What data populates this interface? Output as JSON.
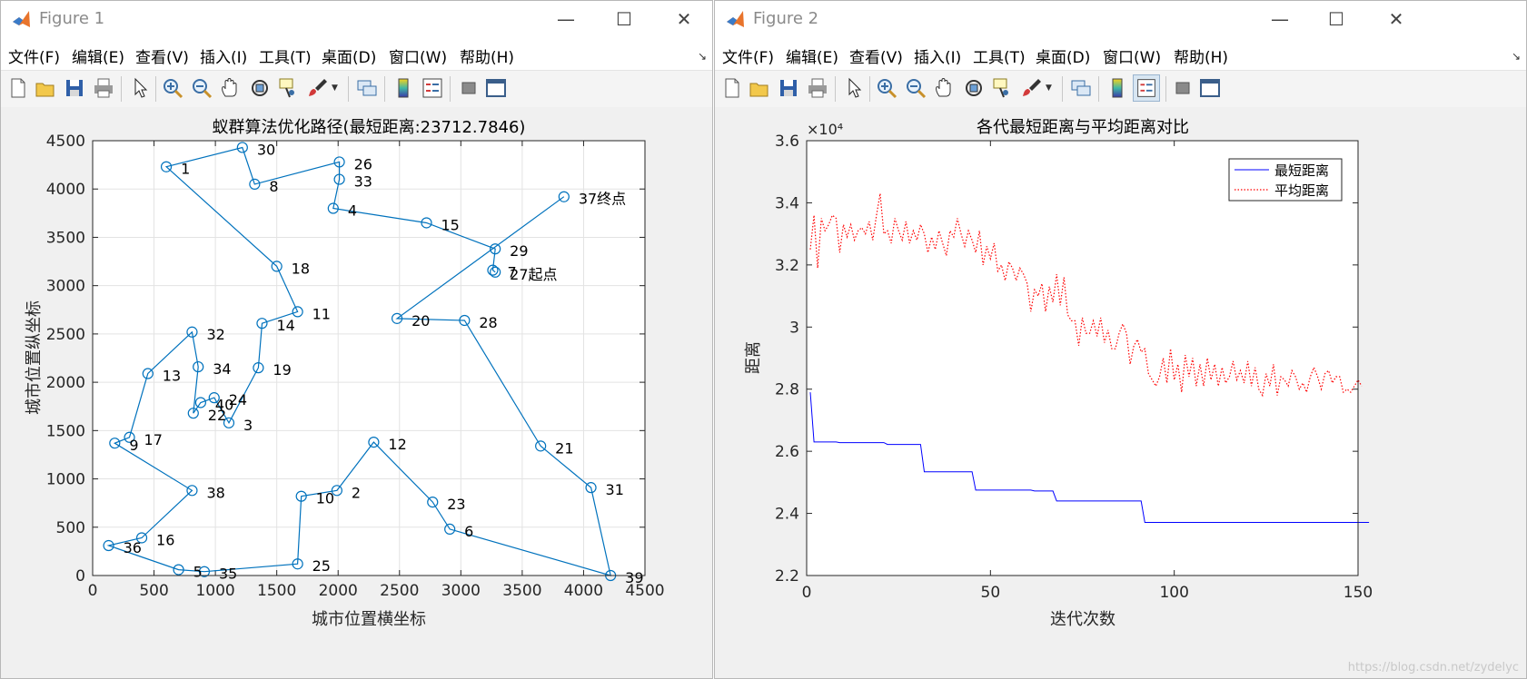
{
  "windows": [
    {
      "title": "Figure 1"
    },
    {
      "title": "Figure 2"
    }
  ],
  "menu": [
    "文件(F)",
    "编辑(E)",
    "查看(V)",
    "插入(I)",
    "工具(T)",
    "桌面(D)",
    "窗口(W)",
    "帮助(H)"
  ],
  "window_controls": {
    "minimize": "—",
    "maximize": "☐",
    "close": "✕"
  },
  "toolbar_icons": [
    "new-file-icon",
    "open-folder-icon",
    "save-icon",
    "print-icon",
    "pointer-icon",
    "zoom-in-icon",
    "zoom-out-icon",
    "pan-hand-icon",
    "rotate-3d-icon",
    "data-cursor-icon",
    "brush-icon",
    "link-plot-icon",
    "colorbar-icon",
    "legend-icon",
    "hide-plot-tools-icon",
    "show-plot-tools-icon"
  ],
  "watermark": "https://blog.csdn.net/zydelyc",
  "colors": {
    "route": "#0072BD",
    "shortest": "#0000FF",
    "average": "#FF0000"
  },
  "chart_data": [
    {
      "type": "line",
      "title": "蚁群算法优化路径(最短距离:23712.7846)",
      "xlabel": "城市位置横坐标",
      "ylabel": "城市位置纵坐标",
      "xlim": [
        0,
        4500
      ],
      "ylim": [
        0,
        4500
      ],
      "xticks": [
        0,
        500,
        1000,
        1500,
        2000,
        2500,
        3000,
        3500,
        4000,
        4500
      ],
      "yticks": [
        0,
        500,
        1000,
        1500,
        2000,
        2500,
        3000,
        3500,
        4000,
        4500
      ],
      "grid": true,
      "marker": "circle",
      "points": [
        {
          "label": "1",
          "x": 600,
          "y": 4230
        },
        {
          "label": "2",
          "x": 1990,
          "y": 880
        },
        {
          "label": "3",
          "x": 1110,
          "y": 1580
        },
        {
          "label": "4",
          "x": 1960,
          "y": 3800
        },
        {
          "label": "5",
          "x": 700,
          "y": 60
        },
        {
          "label": "6",
          "x": 2910,
          "y": 480
        },
        {
          "label": "7",
          "x": 3260,
          "y": 3160
        },
        {
          "label": "8",
          "x": 1320,
          "y": 4050
        },
        {
          "label": "9",
          "x": 180,
          "y": 1370
        },
        {
          "label": "10",
          "x": 1700,
          "y": 820
        },
        {
          "label": "11",
          "x": 1670,
          "y": 2730
        },
        {
          "label": "12",
          "x": 2290,
          "y": 1380
        },
        {
          "label": "13",
          "x": 450,
          "y": 2090
        },
        {
          "label": "14",
          "x": 1380,
          "y": 2610
        },
        {
          "label": "15",
          "x": 2720,
          "y": 3650
        },
        {
          "label": "16",
          "x": 400,
          "y": 390
        },
        {
          "label": "17",
          "x": 300,
          "y": 1430
        },
        {
          "label": "18",
          "x": 1500,
          "y": 3200
        },
        {
          "label": "19",
          "x": 1350,
          "y": 2150
        },
        {
          "label": "20",
          "x": 2480,
          "y": 2660
        },
        {
          "label": "21",
          "x": 3650,
          "y": 1340
        },
        {
          "label": "22",
          "x": 820,
          "y": 1680
        },
        {
          "label": "23",
          "x": 2770,
          "y": 760
        },
        {
          "label": "24",
          "x": 990,
          "y": 1840
        },
        {
          "label": "25",
          "x": 1670,
          "y": 120
        },
        {
          "label": "26",
          "x": 2010,
          "y": 4280
        },
        {
          "label": "27起点",
          "x": 3280,
          "y": 3140
        },
        {
          "label": "28",
          "x": 3030,
          "y": 2640
        },
        {
          "label": "29",
          "x": 3280,
          "y": 3380
        },
        {
          "label": "30",
          "x": 1220,
          "y": 4430
        },
        {
          "label": "31",
          "x": 4060,
          "y": 910
        },
        {
          "label": "32",
          "x": 810,
          "y": 2520
        },
        {
          "label": "33",
          "x": 2010,
          "y": 4100
        },
        {
          "label": "34",
          "x": 860,
          "y": 2160
        },
        {
          "label": "35",
          "x": 910,
          "y": 40
        },
        {
          "label": "36",
          "x": 130,
          "y": 310
        },
        {
          "label": "37终点",
          "x": 3840,
          "y": 3920
        },
        {
          "label": "38",
          "x": 810,
          "y": 880
        },
        {
          "label": "39",
          "x": 4220,
          "y": 0
        },
        {
          "label": "40",
          "x": 880,
          "y": 1790
        }
      ],
      "route_order": [
        "27起点",
        "7",
        "29",
        "15",
        "4",
        "33",
        "26",
        "8",
        "30",
        "1",
        "18",
        "11",
        "14",
        "19",
        "3",
        "24",
        "40",
        "22",
        "34",
        "32",
        "13",
        "17",
        "9",
        "38",
        "16",
        "36",
        "5",
        "35",
        "25",
        "10",
        "2",
        "12",
        "23",
        "6",
        "39",
        "31",
        "21",
        "28",
        "20",
        "37终点"
      ]
    },
    {
      "type": "line",
      "title": "各代最短距离与平均距离对比",
      "xlabel": "迭代次数",
      "ylabel": "距离",
      "exponent_label": "×10⁴",
      "xlim": [
        0,
        150
      ],
      "ylim": [
        2.2,
        3.6
      ],
      "xticks": [
        0,
        50,
        100,
        150
      ],
      "yticks": [
        2.2,
        2.4,
        2.6,
        2.8,
        3,
        3.2,
        3.4,
        3.6
      ],
      "ytick_labels": [
        "2.2",
        "2.4",
        "2.6",
        "2.8",
        "3",
        "3.2",
        "3.4",
        "3.6"
      ],
      "legend": "top-right",
      "grid": false,
      "series": [
        {
          "name": "最短距离",
          "style": "solid",
          "color": "#0000FF",
          "values": [
            2.79,
            2.63,
            2.63,
            2.63,
            2.63,
            2.63,
            2.63,
            2.63,
            2.628,
            2.628,
            2.628,
            2.628,
            2.628,
            2.628,
            2.628,
            2.628,
            2.628,
            2.628,
            2.628,
            2.628,
            2.628,
            2.622,
            2.622,
            2.622,
            2.622,
            2.622,
            2.622,
            2.622,
            2.622,
            2.622,
            2.622,
            2.534,
            2.534,
            2.534,
            2.534,
            2.534,
            2.534,
            2.534,
            2.534,
            2.534,
            2.534,
            2.534,
            2.534,
            2.534,
            2.534,
            2.475,
            2.475,
            2.475,
            2.475,
            2.475,
            2.475,
            2.475,
            2.475,
            2.475,
            2.475,
            2.475,
            2.475,
            2.475,
            2.475,
            2.475,
            2.475,
            2.472,
            2.472,
            2.472,
            2.472,
            2.472,
            2.472,
            2.44,
            2.44,
            2.44,
            2.44,
            2.44,
            2.44,
            2.44,
            2.44,
            2.44,
            2.44,
            2.44,
            2.44,
            2.44,
            2.44,
            2.44,
            2.44,
            2.44,
            2.44,
            2.44,
            2.44,
            2.44,
            2.44,
            2.44,
            2.44,
            2.371,
            2.371,
            2.371,
            2.371,
            2.371,
            2.371,
            2.371,
            2.371,
            2.371,
            2.371,
            2.371,
            2.371,
            2.371,
            2.371,
            2.371,
            2.371,
            2.371,
            2.371,
            2.371,
            2.371,
            2.371,
            2.371,
            2.371,
            2.371,
            2.371,
            2.371,
            2.371,
            2.371,
            2.371,
            2.371,
            2.371,
            2.371,
            2.371,
            2.371,
            2.371,
            2.371,
            2.371,
            2.371,
            2.371,
            2.371,
            2.371,
            2.371,
            2.371,
            2.371,
            2.371,
            2.371,
            2.371,
            2.371,
            2.371,
            2.371,
            2.371,
            2.371,
            2.371,
            2.371,
            2.371,
            2.371,
            2.371,
            2.371,
            2.371,
            2.371,
            2.371,
            2.371
          ]
        },
        {
          "name": "平均距离",
          "style": "dotted",
          "color": "#FF0000",
          "values": [
            3.25,
            3.36,
            3.19,
            3.35,
            3.31,
            3.33,
            3.36,
            3.35,
            3.24,
            3.33,
            3.29,
            3.33,
            3.28,
            3.31,
            3.32,
            3.3,
            3.34,
            3.28,
            3.36,
            3.43,
            3.3,
            3.31,
            3.27,
            3.35,
            3.31,
            3.28,
            3.34,
            3.27,
            3.31,
            3.28,
            3.33,
            3.3,
            3.24,
            3.29,
            3.25,
            3.31,
            3.27,
            3.23,
            3.31,
            3.29,
            3.35,
            3.3,
            3.26,
            3.31,
            3.28,
            3.24,
            3.31,
            3.2,
            3.26,
            3.22,
            3.27,
            3.18,
            3.2,
            3.15,
            3.21,
            3.19,
            3.15,
            3.19,
            3.17,
            3.14,
            3.05,
            3.12,
            3.1,
            3.14,
            3.05,
            3.13,
            3.08,
            3.17,
            3.07,
            3.16,
            3.04,
            3.02,
            3.02,
            2.94,
            3.03,
            2.98,
            2.98,
            3.02,
            2.97,
            3.03,
            2.95,
            2.99,
            2.93,
            2.93,
            2.98,
            3.01,
            2.98,
            2.88,
            2.94,
            2.96,
            2.92,
            2.93,
            2.85,
            2.83,
            2.81,
            2.84,
            2.9,
            2.82,
            2.93,
            2.83,
            2.88,
            2.79,
            2.91,
            2.84,
            2.9,
            2.81,
            2.88,
            2.81,
            2.9,
            2.83,
            2.88,
            2.81,
            2.87,
            2.82,
            2.84,
            2.89,
            2.83,
            2.86,
            2.82,
            2.89,
            2.81,
            2.87,
            2.8,
            2.78,
            2.85,
            2.81,
            2.88,
            2.78,
            2.84,
            2.83,
            2.81,
            2.86,
            2.84,
            2.8,
            2.82,
            2.79,
            2.84,
            2.87,
            2.84,
            2.8,
            2.85,
            2.86,
            2.82,
            2.84,
            2.84,
            2.79,
            2.8,
            2.79,
            2.81,
            2.83,
            2.81
          ]
        }
      ]
    }
  ]
}
